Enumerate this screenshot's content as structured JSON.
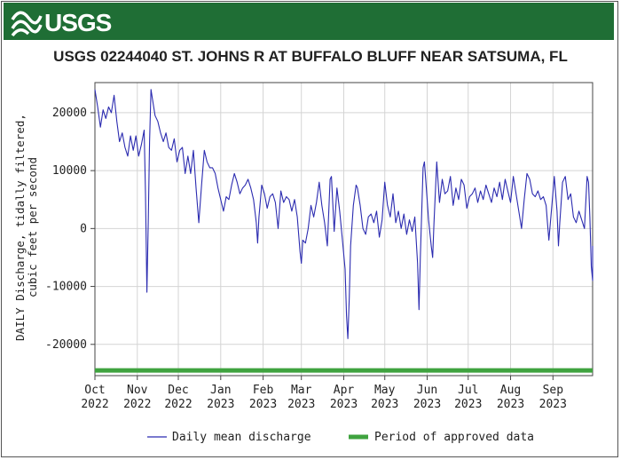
{
  "header": {
    "logo_text": "USGS",
    "title": "USGS 02244040 ST. JOHNS R AT BUFFALO BLUFF NEAR SATSUMA, FL"
  },
  "colors": {
    "banner": "#1f6e35",
    "series": "#2b2bb0",
    "approved": "#3fa33f",
    "grid": "#d4d4d4"
  },
  "legend": {
    "series_label": "Daily mean discharge",
    "approved_label": "Period of approved data"
  },
  "chart_data": {
    "type": "line",
    "title": "USGS 02244040 ST. JOHNS R AT BUFFALO BLUFF NEAR SATSUMA, FL",
    "ylabel_lines": [
      "DAILY Discharge, tidally filtered,",
      "cubic feet per second"
    ],
    "xlabel": "",
    "ylim": [
      -25400,
      25200
    ],
    "xlim_days": [
      0,
      364
    ],
    "yticks": [
      20000,
      10000,
      0,
      -10000,
      -20000
    ],
    "ytick_labels": [
      "20000",
      "10000",
      "0",
      "-10000",
      "-20000"
    ],
    "xticks": [
      {
        "month": "Oct",
        "year": "2022"
      },
      {
        "month": "Nov",
        "year": "2022"
      },
      {
        "month": "Dec",
        "year": "2022"
      },
      {
        "month": "Jan",
        "year": "2023"
      },
      {
        "month": "Feb",
        "year": "2023"
      },
      {
        "month": "Mar",
        "year": "2023"
      },
      {
        "month": "Apr",
        "year": "2023"
      },
      {
        "month": "May",
        "year": "2023"
      },
      {
        "month": "Jun",
        "year": "2023"
      },
      {
        "month": "Jul",
        "year": "2023"
      },
      {
        "month": "Aug",
        "year": "2023"
      },
      {
        "month": "Sep",
        "year": "2023"
      }
    ],
    "grid": true,
    "legend_position": "bottom",
    "series": [
      {
        "name": "Daily mean discharge",
        "x_start": "2022-10-01",
        "x_end": "2023-09-30",
        "points": [
          [
            0,
            24000
          ],
          [
            2,
            21000
          ],
          [
            4,
            17500
          ],
          [
            6,
            20500
          ],
          [
            8,
            19000
          ],
          [
            10,
            21000
          ],
          [
            12,
            20000
          ],
          [
            14,
            23000
          ],
          [
            16,
            18500
          ],
          [
            18,
            15000
          ],
          [
            20,
            16500
          ],
          [
            22,
            14000
          ],
          [
            24,
            12500
          ],
          [
            26,
            16000
          ],
          [
            28,
            13500
          ],
          [
            30,
            16000
          ],
          [
            32,
            12500
          ],
          [
            34,
            14500
          ],
          [
            36,
            17000
          ],
          [
            37,
            6000
          ],
          [
            38,
            -11000
          ],
          [
            39,
            1000
          ],
          [
            40,
            15000
          ],
          [
            41,
            24000
          ],
          [
            42,
            22500
          ],
          [
            44,
            19500
          ],
          [
            46,
            18500
          ],
          [
            48,
            16500
          ],
          [
            50,
            15000
          ],
          [
            52,
            16500
          ],
          [
            54,
            14000
          ],
          [
            56,
            13500
          ],
          [
            58,
            15500
          ],
          [
            60,
            11500
          ],
          [
            62,
            13500
          ],
          [
            64,
            14000
          ],
          [
            66,
            9500
          ],
          [
            68,
            12500
          ],
          [
            70,
            9500
          ],
          [
            72,
            13500
          ],
          [
            74,
            7000
          ],
          [
            76,
            1000
          ],
          [
            78,
            7500
          ],
          [
            80,
            13500
          ],
          [
            82,
            11500
          ],
          [
            84,
            10500
          ],
          [
            86,
            10500
          ],
          [
            88,
            9500
          ],
          [
            90,
            7000
          ],
          [
            92,
            5000
          ],
          [
            94,
            3000
          ],
          [
            96,
            5500
          ],
          [
            98,
            5000
          ],
          [
            100,
            7500
          ],
          [
            102,
            9500
          ],
          [
            104,
            8000
          ],
          [
            106,
            6000
          ],
          [
            108,
            7000
          ],
          [
            110,
            7500
          ],
          [
            112,
            8500
          ],
          [
            114,
            7000
          ],
          [
            116,
            5000
          ],
          [
            118,
            1000
          ],
          [
            119,
            -2500
          ],
          [
            120,
            2000
          ],
          [
            122,
            7500
          ],
          [
            124,
            6000
          ],
          [
            126,
            3500
          ],
          [
            128,
            5500
          ],
          [
            130,
            6000
          ],
          [
            132,
            4500
          ],
          [
            134,
            0
          ],
          [
            136,
            6500
          ],
          [
            138,
            4500
          ],
          [
            140,
            5500
          ],
          [
            142,
            5000
          ],
          [
            144,
            3000
          ],
          [
            146,
            5000
          ],
          [
            148,
            2000
          ],
          [
            150,
            -4000
          ],
          [
            151,
            -6000
          ],
          [
            152,
            -2000
          ],
          [
            154,
            -2500
          ],
          [
            156,
            0
          ],
          [
            158,
            4000
          ],
          [
            160,
            2000
          ],
          [
            162,
            4500
          ],
          [
            164,
            8000
          ],
          [
            166,
            4000
          ],
          [
            168,
            1000
          ],
          [
            170,
            -3000
          ],
          [
            172,
            8500
          ],
          [
            173,
            9000
          ],
          [
            175,
            -500
          ],
          [
            177,
            7000
          ],
          [
            179,
            3000
          ],
          [
            181,
            -2000
          ],
          [
            183,
            -7000
          ],
          [
            184,
            -15000
          ],
          [
            185,
            -19000
          ],
          [
            186,
            -12000
          ],
          [
            187,
            -3000
          ],
          [
            189,
            4000
          ],
          [
            191,
            7500
          ],
          [
            192,
            7000
          ],
          [
            194,
            4000
          ],
          [
            196,
            0
          ],
          [
            198,
            -1000
          ],
          [
            200,
            2000
          ],
          [
            202,
            2500
          ],
          [
            204,
            1000
          ],
          [
            206,
            3000
          ],
          [
            208,
            -1500
          ],
          [
            210,
            1500
          ],
          [
            212,
            8000
          ],
          [
            214,
            4000
          ],
          [
            216,
            2000
          ],
          [
            218,
            6000
          ],
          [
            220,
            1000
          ],
          [
            222,
            3000
          ],
          [
            224,
            0
          ],
          [
            226,
            2500
          ],
          [
            228,
            -1000
          ],
          [
            230,
            1500
          ],
          [
            232,
            -500
          ],
          [
            234,
            2000
          ],
          [
            236,
            -6000
          ],
          [
            237,
            -14000
          ],
          [
            238,
            -5000
          ],
          [
            240,
            10500
          ],
          [
            241,
            11500
          ],
          [
            243,
            5000
          ],
          [
            244,
            1500
          ],
          [
            246,
            -3000
          ],
          [
            247,
            -5000
          ],
          [
            248,
            1000
          ],
          [
            250,
            11500
          ],
          [
            252,
            4500
          ],
          [
            254,
            8500
          ],
          [
            256,
            6000
          ],
          [
            258,
            6500
          ],
          [
            260,
            9000
          ],
          [
            262,
            4000
          ],
          [
            264,
            7000
          ],
          [
            266,
            5000
          ],
          [
            268,
            8500
          ],
          [
            270,
            7500
          ],
          [
            272,
            3500
          ],
          [
            274,
            5500
          ],
          [
            276,
            6000
          ],
          [
            278,
            7000
          ],
          [
            280,
            4500
          ],
          [
            282,
            6500
          ],
          [
            284,
            5000
          ],
          [
            286,
            7500
          ],
          [
            288,
            6000
          ],
          [
            290,
            4500
          ],
          [
            292,
            7000
          ],
          [
            294,
            5500
          ],
          [
            296,
            8000
          ],
          [
            298,
            5000
          ],
          [
            300,
            8500
          ],
          [
            302,
            6500
          ],
          [
            304,
            4500
          ],
          [
            306,
            9000
          ],
          [
            308,
            6000
          ],
          [
            310,
            3000
          ],
          [
            312,
            0
          ],
          [
            314,
            5000
          ],
          [
            316,
            9500
          ],
          [
            318,
            8500
          ],
          [
            320,
            6000
          ],
          [
            322,
            5500
          ],
          [
            324,
            6500
          ],
          [
            326,
            5000
          ],
          [
            328,
            5500
          ],
          [
            330,
            4000
          ],
          [
            331,
            1000
          ],
          [
            332,
            -2000
          ],
          [
            334,
            3500
          ],
          [
            336,
            9000
          ],
          [
            338,
            3000
          ],
          [
            339,
            -3000
          ],
          [
            340,
            1000
          ],
          [
            342,
            8000
          ],
          [
            344,
            9000
          ],
          [
            346,
            5000
          ],
          [
            348,
            6000
          ],
          [
            350,
            2000
          ],
          [
            352,
            1000
          ],
          [
            354,
            3000
          ],
          [
            356,
            1500
          ],
          [
            358,
            0
          ],
          [
            360,
            9000
          ],
          [
            361,
            8000
          ],
          [
            362,
            2000
          ],
          [
            363,
            -6500
          ],
          [
            364,
            -9000
          ],
          [
            365,
            -3000
          ]
        ]
      },
      {
        "name": "Period of approved data",
        "x_start": "2022-10-01",
        "x_end": "2023-09-30",
        "y": -24500
      }
    ]
  }
}
